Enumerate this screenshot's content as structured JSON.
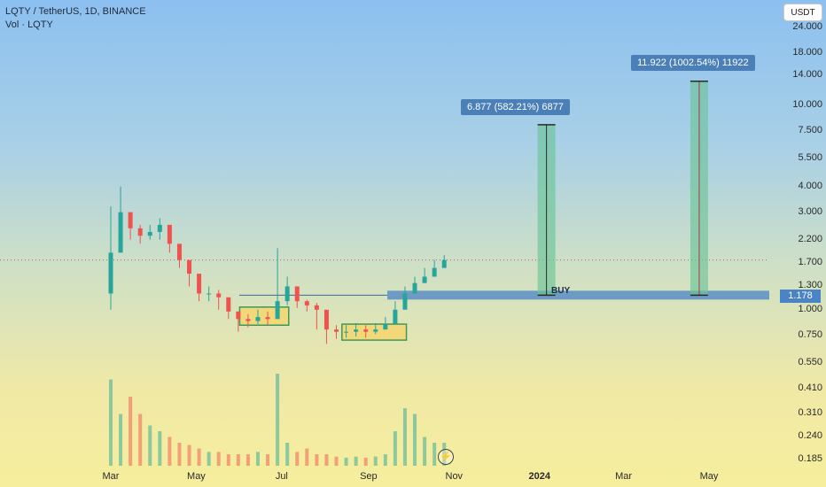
{
  "header": {
    "title": "LQTY / TetherUS, 1D, BINANCE",
    "volume_label": "Vol · LQTY"
  },
  "currency_button": "USDT",
  "price_axis": {
    "scale": "log",
    "labels": [
      "24.000",
      "18.000",
      "14.000",
      "10.000",
      "7.500",
      "5.500",
      "4.000",
      "3.000",
      "2.200",
      "1.700",
      "1.300",
      "1.000",
      "0.750",
      "0.550",
      "0.410",
      "0.310",
      "0.240",
      "0.185"
    ]
  },
  "current_price_tag": "1.178",
  "time_axis": {
    "labels": [
      "Mar",
      "May",
      "Jul",
      "Sep",
      "Nov",
      "2024",
      "Mar",
      "May"
    ],
    "bold_label": "2024"
  },
  "colors": {
    "candle_up": "#26a69a",
    "candle_down": "#ef5350",
    "buy_zone": "#4a83c6",
    "target_zone": "#6cc496",
    "accumulation_box": "#f6d56a",
    "box_border": "#3a9a5a"
  },
  "annotations": {
    "target1_label": "6.877 (582.21%) 6877",
    "target2_label": "11.922 (1002.54%) 11922",
    "buy_label": "BUY"
  },
  "chart_data": {
    "type": "candlestick",
    "symbol": "LQTY / TetherUS",
    "interval": "1D",
    "exchange": "BINANCE",
    "y_scale": "log",
    "ylim": [
      0.17,
      30
    ],
    "dates": [
      "2023-03-01",
      "2023-03-08",
      "2023-03-15",
      "2023-03-22",
      "2023-03-29",
      "2023-04-05",
      "2023-04-12",
      "2023-04-19",
      "2023-04-26",
      "2023-05-03",
      "2023-05-10",
      "2023-05-17",
      "2023-05-24",
      "2023-05-31",
      "2023-06-07",
      "2023-06-14",
      "2023-06-21",
      "2023-06-28",
      "2023-07-05",
      "2023-07-12",
      "2023-07-19",
      "2023-07-26",
      "2023-08-02",
      "2023-08-09",
      "2023-08-16",
      "2023-08-23",
      "2023-08-30",
      "2023-09-06",
      "2023-09-13",
      "2023-09-20",
      "2023-09-27",
      "2023-10-04",
      "2023-10-11",
      "2023-10-18",
      "2023-10-25"
    ],
    "close": [
      1.9,
      3.0,
      2.5,
      2.3,
      2.4,
      2.6,
      2.1,
      1.75,
      1.5,
      1.2,
      1.2,
      1.15,
      0.98,
      0.9,
      0.88,
      0.92,
      0.9,
      1.1,
      1.3,
      1.1,
      1.05,
      1.0,
      0.8,
      0.78,
      0.78,
      0.8,
      0.78,
      0.8,
      0.85,
      1.0,
      1.2,
      1.35,
      1.45,
      1.6,
      1.75
    ],
    "high": [
      3.2,
      4.0,
      2.9,
      2.6,
      2.6,
      2.8,
      2.4,
      1.9,
      1.6,
      1.35,
      1.3,
      1.25,
      1.1,
      0.98,
      0.95,
      1.0,
      0.98,
      2.0,
      1.45,
      1.2,
      1.12,
      1.08,
      0.92,
      0.84,
      0.84,
      0.86,
      0.84,
      0.86,
      0.92,
      1.1,
      1.3,
      1.45,
      1.6,
      1.75,
      1.85
    ],
    "low": [
      1.0,
      2.4,
      2.2,
      2.1,
      2.2,
      2.2,
      1.9,
      1.6,
      1.3,
      1.1,
      1.1,
      1.0,
      0.9,
      0.78,
      0.82,
      0.85,
      0.84,
      0.95,
      1.05,
      1.02,
      0.98,
      0.8,
      0.68,
      0.72,
      0.73,
      0.74,
      0.73,
      0.76,
      0.8,
      0.9,
      1.1,
      1.25,
      1.35,
      1.45,
      1.6
    ],
    "volume": [
      0.75,
      0.45,
      0.6,
      0.45,
      0.35,
      0.3,
      0.25,
      0.2,
      0.18,
      0.15,
      0.12,
      0.12,
      0.1,
      0.1,
      0.1,
      0.12,
      0.1,
      0.8,
      0.2,
      0.12,
      0.15,
      0.1,
      0.1,
      0.08,
      0.07,
      0.08,
      0.07,
      0.08,
      0.1,
      0.3,
      0.5,
      0.45,
      0.25,
      0.2,
      0.2
    ],
    "buy_level": 1.178,
    "accumulation_zones": [
      {
        "from": "2023-06-01",
        "to": "2023-07-06",
        "low": 0.84,
        "high": 1.03
      },
      {
        "from": "2023-08-13",
        "to": "2023-09-28",
        "low": 0.71,
        "high": 0.85
      }
    ],
    "targets": [
      {
        "date": "2024-01-06",
        "from_price": 1.178,
        "to_price": 8.03,
        "label": "6.877 (582.21%) 6877"
      },
      {
        "date": "2024-04-24",
        "from_price": 1.178,
        "to_price": 13.1,
        "label": "11.922 (1002.54%) 11922"
      }
    ]
  }
}
